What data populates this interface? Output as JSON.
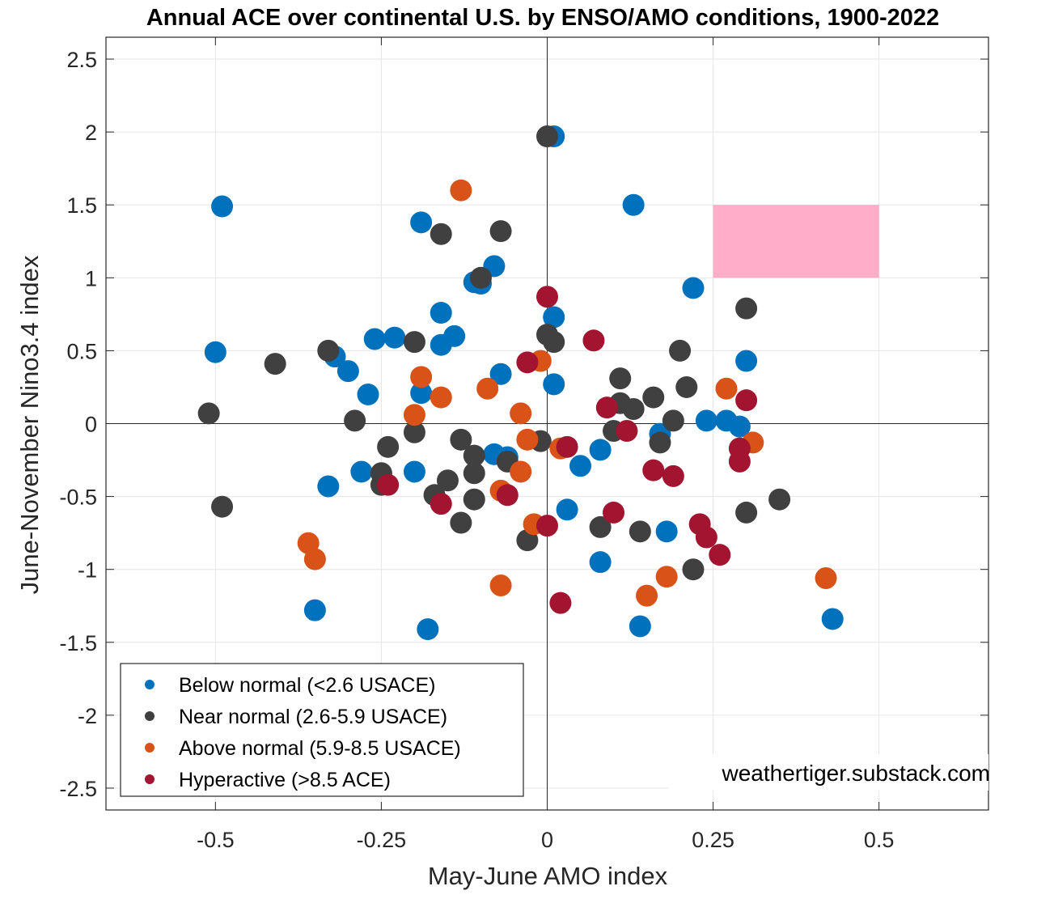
{
  "chart_data": {
    "type": "scatter",
    "title": "Annual ACE over continental U.S. by ENSO/AMO conditions, 1900-2022",
    "xlabel": "May-June AMO index",
    "ylabel": "June-November Nino3.4 index",
    "xlim": [
      -0.665,
      0.665
    ],
    "ylim": [
      -2.65,
      2.65
    ],
    "xticks": [
      -0.5,
      -0.25,
      0,
      0.25,
      0.5
    ],
    "xtick_labels": [
      "-0.5",
      "-0.25",
      "0",
      "0.25",
      "0.5"
    ],
    "yticks": [
      -2.5,
      -2,
      -1.5,
      -1,
      -0.5,
      0,
      0.5,
      1,
      1.5,
      2,
      2.5
    ],
    "ytick_labels": [
      "-2.5",
      "-2",
      "-1.5",
      "-1",
      "-0.5",
      "0",
      "0.5",
      "1",
      "1.5",
      "2",
      "2.5"
    ],
    "grid": true,
    "zero_lines": true,
    "highlight_box": {
      "x": [
        0.25,
        0.5
      ],
      "y": [
        1.0,
        1.5
      ],
      "color": "#ffadc9"
    },
    "credit": "weathertiger.substack.com",
    "legend_position": "bottom-left",
    "series": [
      {
        "name": "Below normal (<2.6 USACE)",
        "color": "#0072bd",
        "points": [
          [
            0.01,
            1.97
          ],
          [
            -0.49,
            1.49
          ],
          [
            0.13,
            1.5
          ],
          [
            -0.19,
            1.38
          ],
          [
            -0.08,
            1.08
          ],
          [
            -0.11,
            0.97
          ],
          [
            -0.1,
            0.96
          ],
          [
            0.22,
            0.93
          ],
          [
            0.01,
            0.73
          ],
          [
            -0.16,
            0.76
          ],
          [
            -0.14,
            0.6
          ],
          [
            -0.16,
            0.54
          ],
          [
            -0.26,
            0.58
          ],
          [
            -0.23,
            0.59
          ],
          [
            -0.5,
            0.49
          ],
          [
            -0.32,
            0.46
          ],
          [
            -0.3,
            0.36
          ],
          [
            0.3,
            0.43
          ],
          [
            -0.07,
            0.34
          ],
          [
            0.01,
            0.27
          ],
          [
            -0.27,
            0.2
          ],
          [
            -0.19,
            0.21
          ],
          [
            0.24,
            0.02
          ],
          [
            0.27,
            0.02
          ],
          [
            0.29,
            -0.02
          ],
          [
            0.17,
            -0.07
          ],
          [
            -0.08,
            -0.21
          ],
          [
            -0.06,
            -0.23
          ],
          [
            0.08,
            -0.18
          ],
          [
            0.05,
            -0.29
          ],
          [
            -0.28,
            -0.33
          ],
          [
            -0.2,
            -0.33
          ],
          [
            -0.33,
            -0.43
          ],
          [
            0.03,
            -0.59
          ],
          [
            0.18,
            -0.74
          ],
          [
            0.08,
            -0.95
          ],
          [
            -0.35,
            -1.28
          ],
          [
            0.43,
            -1.34
          ],
          [
            0.14,
            -1.39
          ],
          [
            -0.18,
            -1.41
          ]
        ]
      },
      {
        "name": "Near normal (2.6-5.9 USACE)",
        "color": "#404040",
        "points": [
          [
            0.0,
            1.97
          ],
          [
            -0.16,
            1.3
          ],
          [
            -0.07,
            1.32
          ],
          [
            -0.1,
            1.0
          ],
          [
            0.3,
            0.79
          ],
          [
            0.0,
            0.61
          ],
          [
            0.01,
            0.56
          ],
          [
            -0.2,
            0.56
          ],
          [
            -0.33,
            0.5
          ],
          [
            -0.41,
            0.41
          ],
          [
            0.2,
            0.5
          ],
          [
            0.11,
            0.31
          ],
          [
            0.21,
            0.25
          ],
          [
            0.16,
            0.18
          ],
          [
            0.11,
            0.14
          ],
          [
            0.13,
            0.1
          ],
          [
            -0.51,
            0.07
          ],
          [
            -0.29,
            0.02
          ],
          [
            0.19,
            0.02
          ],
          [
            0.1,
            -0.05
          ],
          [
            -0.2,
            -0.06
          ],
          [
            -0.13,
            -0.11
          ],
          [
            -0.01,
            -0.12
          ],
          [
            0.17,
            -0.13
          ],
          [
            -0.24,
            -0.16
          ],
          [
            -0.11,
            -0.22
          ],
          [
            -0.06,
            -0.26
          ],
          [
            -0.11,
            -0.34
          ],
          [
            -0.25,
            -0.34
          ],
          [
            -0.15,
            -0.39
          ],
          [
            -0.25,
            -0.42
          ],
          [
            -0.17,
            -0.49
          ],
          [
            0.35,
            -0.52
          ],
          [
            -0.11,
            -0.52
          ],
          [
            -0.49,
            -0.57
          ],
          [
            0.3,
            -0.61
          ],
          [
            -0.13,
            -0.68
          ],
          [
            0.08,
            -0.71
          ],
          [
            0.14,
            -0.74
          ],
          [
            -0.03,
            -0.8
          ],
          [
            0.22,
            -1.0
          ]
        ]
      },
      {
        "name": "Above normal (5.9-8.5 USACE)",
        "color": "#d95319",
        "points": [
          [
            -0.13,
            1.6
          ],
          [
            -0.01,
            0.43
          ],
          [
            -0.19,
            0.32
          ],
          [
            -0.09,
            0.24
          ],
          [
            0.27,
            0.24
          ],
          [
            -0.16,
            0.18
          ],
          [
            -0.2,
            0.06
          ],
          [
            -0.04,
            0.07
          ],
          [
            0.31,
            -0.13
          ],
          [
            -0.03,
            -0.11
          ],
          [
            0.02,
            -0.17
          ],
          [
            -0.04,
            -0.33
          ],
          [
            -0.07,
            -0.46
          ],
          [
            -0.02,
            -0.69
          ],
          [
            -0.36,
            -0.82
          ],
          [
            -0.35,
            -0.93
          ],
          [
            0.18,
            -1.05
          ],
          [
            0.42,
            -1.06
          ],
          [
            -0.07,
            -1.11
          ],
          [
            0.15,
            -1.18
          ]
        ]
      },
      {
        "name": "Hyperactive (>8.5 ACE)",
        "color": "#a2142f",
        "points": [
          [
            0.0,
            0.87
          ],
          [
            0.07,
            0.57
          ],
          [
            -0.03,
            0.42
          ],
          [
            0.3,
            0.16
          ],
          [
            0.09,
            0.11
          ],
          [
            0.12,
            -0.05
          ],
          [
            0.03,
            -0.16
          ],
          [
            0.29,
            -0.17
          ],
          [
            0.29,
            -0.26
          ],
          [
            0.16,
            -0.32
          ],
          [
            0.19,
            -0.36
          ],
          [
            -0.24,
            -0.42
          ],
          [
            -0.06,
            -0.49
          ],
          [
            -0.16,
            -0.55
          ],
          [
            0.1,
            -0.61
          ],
          [
            0.23,
            -0.69
          ],
          [
            0.0,
            -0.7
          ],
          [
            0.24,
            -0.78
          ],
          [
            0.26,
            -0.9
          ],
          [
            0.02,
            -1.23
          ]
        ]
      }
    ]
  }
}
